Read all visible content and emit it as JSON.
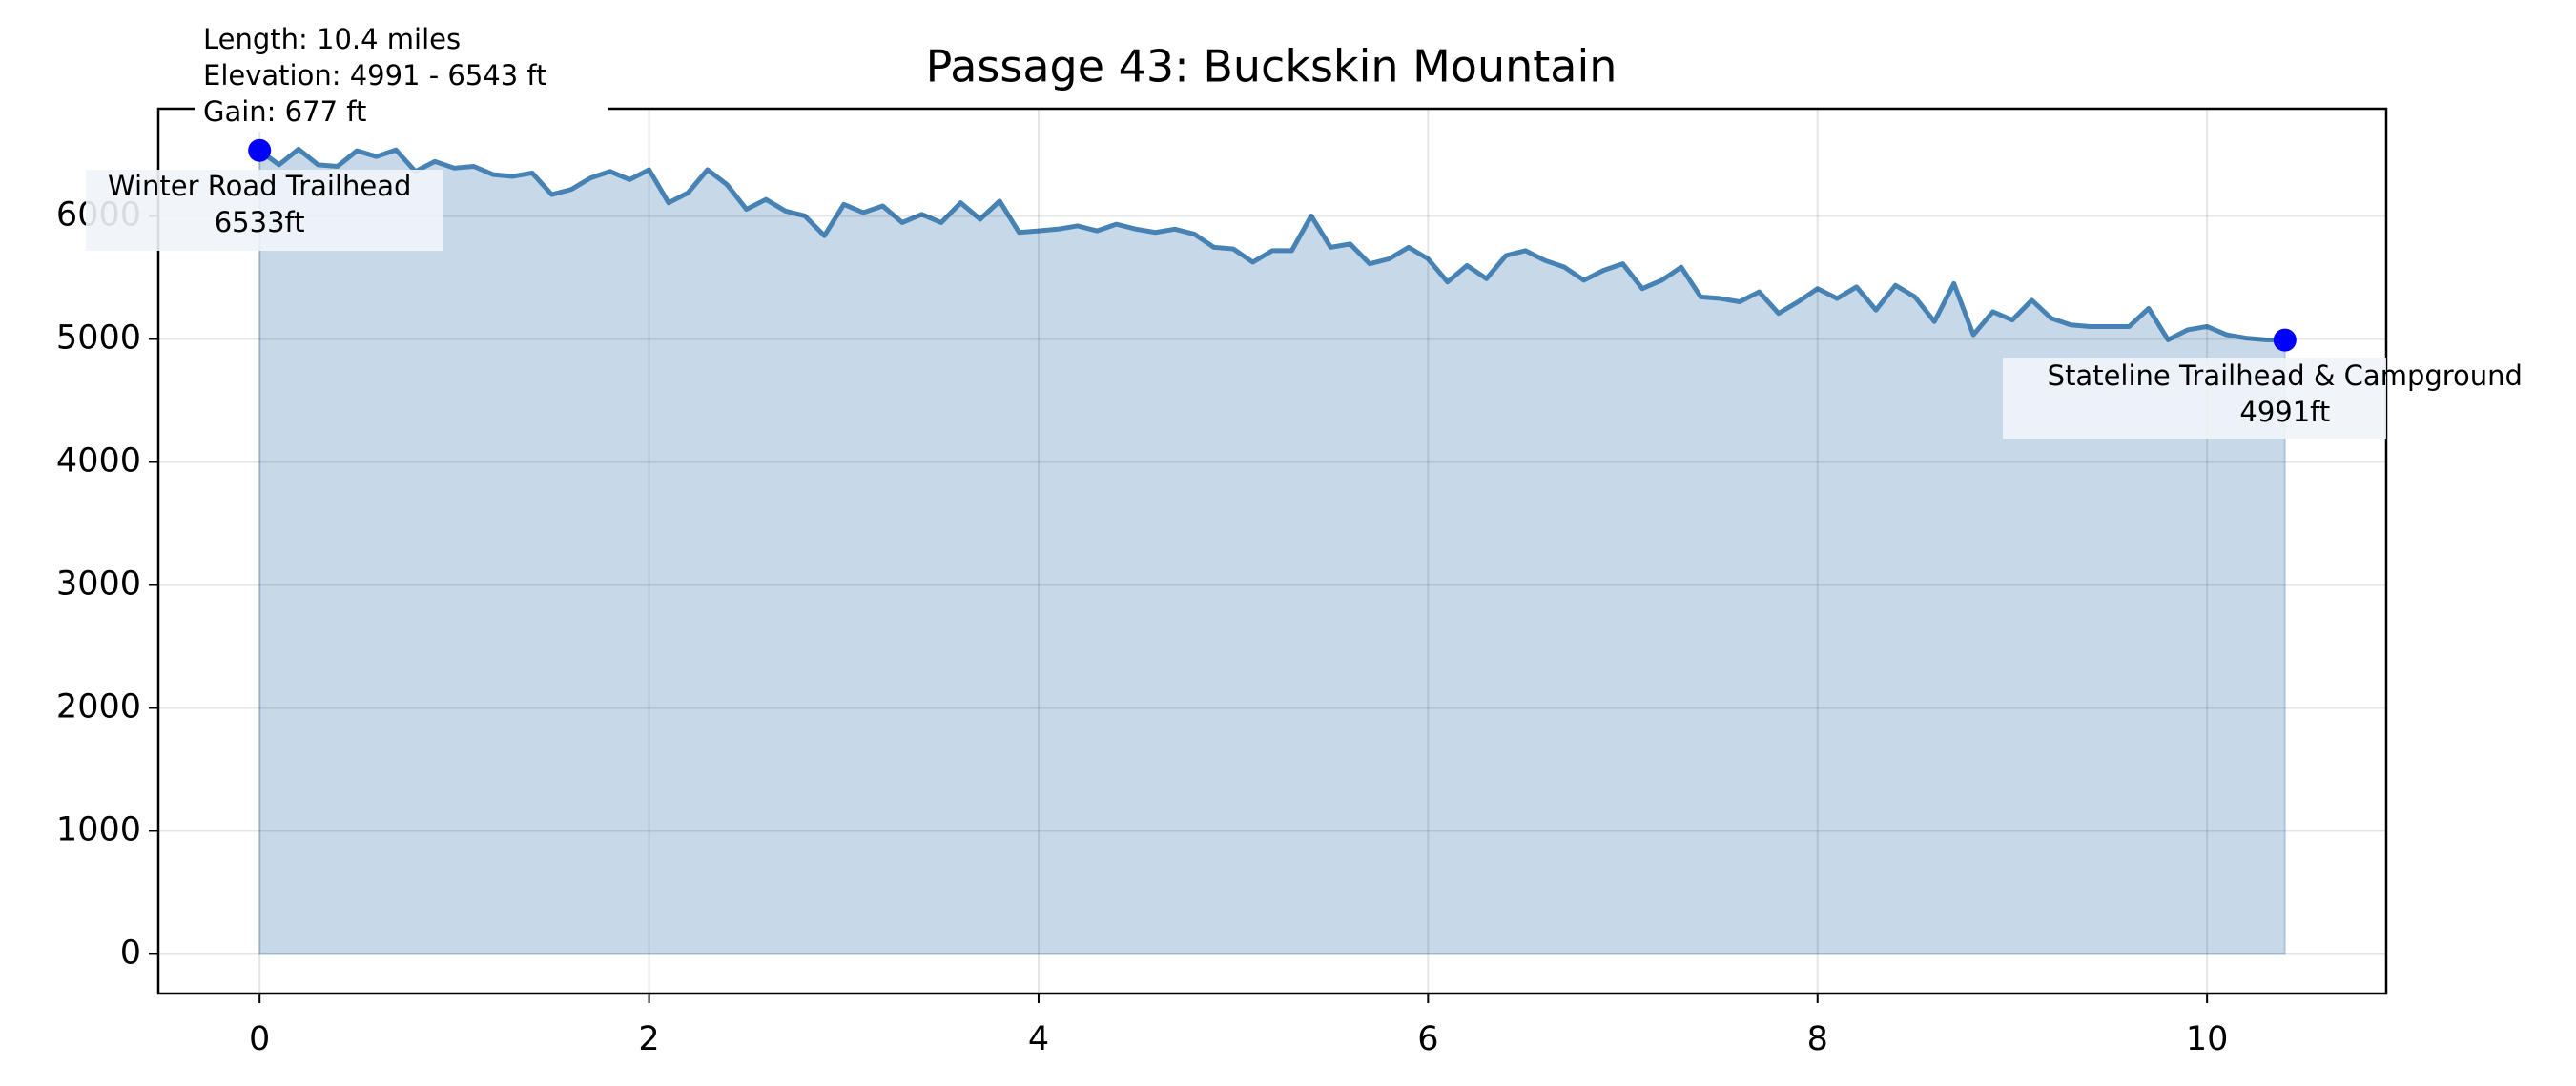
{
  "chart_data": {
    "type": "area",
    "title": "Passage 43: Buckskin Mountain",
    "info": [
      "Length: 10.4 miles",
      "Elevation: 4991 - 6543 ft",
      "Gain: 677 ft"
    ],
    "x": [
      0,
      0.1,
      0.2,
      0.3,
      0.4,
      0.5,
      0.6,
      0.7,
      0.8,
      0.9,
      1.0,
      1.1,
      1.2,
      1.3,
      1.4,
      1.5,
      1.6,
      1.7,
      1.8,
      1.9,
      2.0,
      2.1,
      2.2,
      2.3,
      2.4,
      2.5,
      2.6,
      2.7,
      2.8,
      2.9,
      3.0,
      3.1,
      3.2,
      3.3,
      3.4,
      3.5,
      3.6,
      3.7,
      3.8,
      3.9,
      4.0,
      4.1,
      4.2,
      4.3,
      4.4,
      4.5,
      4.6,
      4.7,
      4.8,
      4.9,
      5.0,
      5.1,
      5.2,
      5.3,
      5.4,
      5.5,
      5.6,
      5.7,
      5.8,
      5.9,
      6.0,
      6.1,
      6.2,
      6.3,
      6.4,
      6.5,
      6.6,
      6.7,
      6.8,
      6.9,
      7.0,
      7.1,
      7.2,
      7.3,
      7.4,
      7.5,
      7.6,
      7.7,
      7.8,
      7.9,
      8.0,
      8.1,
      8.2,
      8.3,
      8.4,
      8.5,
      8.6,
      8.7,
      8.8,
      8.9,
      9.0,
      9.1,
      9.2,
      9.3,
      9.4,
      9.5,
      9.6,
      9.7,
      9.8,
      9.9,
      10.0,
      10.1,
      10.2,
      10.3,
      10.4
    ],
    "values": [
      6533,
      6416,
      6543,
      6416,
      6403,
      6530,
      6483,
      6537,
      6362,
      6443,
      6389,
      6403,
      6336,
      6322,
      6349,
      6174,
      6215,
      6309,
      6362,
      6295,
      6376,
      6107,
      6188,
      6376,
      6255,
      6054,
      6134,
      6040,
      6000,
      5839,
      6094,
      6027,
      6081,
      5946,
      6013,
      5946,
      6107,
      5973,
      6121,
      5866,
      5879,
      5893,
      5919,
      5879,
      5933,
      5893,
      5866,
      5893,
      5852,
      5745,
      5732,
      5624,
      5718,
      5718,
      6000,
      5745,
      5772,
      5611,
      5651,
      5745,
      5651,
      5463,
      5597,
      5490,
      5678,
      5718,
      5638,
      5584,
      5477,
      5557,
      5611,
      5409,
      5477,
      5584,
      5342,
      5329,
      5302,
      5383,
      5208,
      5302,
      5409,
      5329,
      5423,
      5235,
      5436,
      5342,
      5141,
      5450,
      5034,
      5221,
      5154,
      5315,
      5168,
      5114,
      5101,
      5101,
      5101,
      5248,
      4993,
      5074,
      5101,
      5034,
      5007,
      4993,
      4991
    ],
    "color": "#4682b4",
    "markers": [
      {
        "name": "Winter Road Trailhead",
        "x": 0,
        "y": 6533,
        "label": "6533ft"
      },
      {
        "name": "Stateline Trailhead & Campground",
        "x": 10.4,
        "y": 4991,
        "label": "4991ft"
      }
    ],
    "marker_color": "#0000ff",
    "xlim": [
      -0.52,
      10.92
    ],
    "ylim": [
      -322,
      6872
    ],
    "xticks": [
      0,
      2,
      4,
      6,
      8,
      10
    ],
    "yticks": [
      0,
      1000,
      2000,
      3000,
      4000,
      5000,
      6000
    ],
    "grid": true
  }
}
